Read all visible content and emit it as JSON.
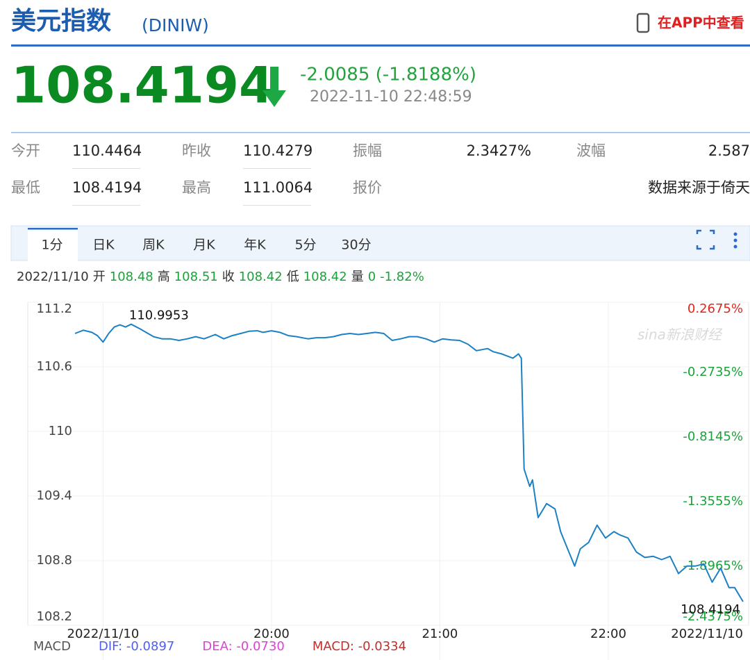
{
  "header": {
    "title": "美元指数",
    "code": "(DINIW)",
    "app_link": "在APP中查看"
  },
  "quote": {
    "price": "108.4194",
    "change": "-2.0085 (-1.8188%)",
    "time": "2022-11-10 22:48:59"
  },
  "stats": {
    "rows": [
      [
        [
          "今开",
          "110.4464"
        ],
        [
          "昨收",
          "110.4279"
        ],
        [
          "振幅",
          "2.3427%"
        ],
        [
          "波幅",
          "2.587"
        ]
      ],
      [
        [
          "最低",
          "108.4194"
        ],
        [
          "最高",
          "111.0064"
        ],
        [
          "报价",
          ""
        ]
      ]
    ],
    "source": "数据来源于倚天"
  },
  "tabs": {
    "items": [
      "1分",
      "日K",
      "周K",
      "月K",
      "年K",
      "5分",
      "30分"
    ],
    "active": "1分"
  },
  "ohlc_bar": {
    "date": "2022/11/10",
    "items": [
      [
        "开",
        "108.48"
      ],
      [
        "高",
        "108.51"
      ],
      [
        "收",
        "108.42"
      ],
      [
        "低",
        "108.42"
      ],
      [
        "量",
        "0"
      ]
    ],
    "change": "-1.82%"
  },
  "watermark": "sina新浪财经",
  "chart_data": {
    "type": "line",
    "x": [
      "18:50",
      "18:53",
      "18:56",
      "18:58",
      "19:00",
      "19:02",
      "19:04",
      "19:06",
      "19:08",
      "19:10",
      "19:13",
      "19:16",
      "19:18",
      "19:21",
      "19:24",
      "19:27",
      "19:30",
      "19:33",
      "19:36",
      "19:40",
      "19:43",
      "19:46",
      "19:49",
      "19:52",
      "19:55",
      "19:57",
      "20:00",
      "20:03",
      "20:06",
      "20:09",
      "20:13",
      "20:16",
      "20:19",
      "20:22",
      "20:25",
      "20:28",
      "20:31",
      "20:34",
      "20:37",
      "20:40",
      "20:43",
      "20:46",
      "20:49",
      "20:52",
      "20:55",
      "20:58",
      "21:01",
      "21:04",
      "21:07",
      "21:10",
      "21:13",
      "21:17",
      "21:19",
      "21:22",
      "21:26",
      "21:28",
      "21:29",
      "21:30",
      "21:32",
      "21:33",
      "21:35",
      "21:38",
      "21:41",
      "21:43",
      "21:45",
      "21:48",
      "21:50",
      "21:53",
      "21:56",
      "21:59",
      "22:02",
      "22:04",
      "22:07",
      "22:10",
      "22:13",
      "22:16",
      "22:19",
      "22:22",
      "22:25",
      "22:28",
      "22:31",
      "22:34",
      "22:37",
      "22:40",
      "22:43",
      "22:45",
      "22:48"
    ],
    "series": [
      {
        "name": "美元指数",
        "color": "#1b80c4",
        "values": [
          110.91,
          110.94,
          110.92,
          110.89,
          110.83,
          110.91,
          110.97,
          110.99,
          110.97,
          110.9953,
          110.955,
          110.91,
          110.88,
          110.86,
          110.86,
          110.845,
          110.86,
          110.88,
          110.86,
          110.9,
          110.86,
          110.89,
          110.91,
          110.93,
          110.935,
          110.92,
          110.935,
          110.92,
          110.89,
          110.88,
          110.86,
          110.87,
          110.87,
          110.88,
          110.9,
          110.91,
          110.9,
          110.91,
          110.92,
          110.91,
          110.845,
          110.86,
          110.88,
          110.88,
          110.86,
          110.83,
          110.86,
          110.85,
          110.845,
          110.81,
          110.75,
          110.77,
          110.74,
          110.72,
          110.68,
          110.72,
          110.68,
          109.65,
          109.49,
          109.55,
          109.2,
          109.33,
          109.28,
          109.07,
          108.94,
          108.75,
          108.91,
          108.97,
          109.13,
          109.01,
          109.07,
          109.04,
          109.01,
          108.88,
          108.83,
          108.84,
          108.81,
          108.84,
          108.68,
          108.75,
          108.75,
          108.77,
          108.6,
          108.73,
          108.55,
          108.55,
          108.4194
        ]
      }
    ],
    "xlim": [
      "18:50",
      "22:48"
    ],
    "xticks": [
      {
        "value": "19:00",
        "label": "2022/11/10"
      },
      "20:00",
      "21:00",
      "22:00",
      {
        "value": "22:48",
        "label": "2022/11/10"
      }
    ],
    "ylim": [
      108.2,
      111.2
    ],
    "yticks": [
      111.2,
      110.6,
      110,
      109.4,
      108.8,
      108.2
    ],
    "y2lim": [
      -2.4375,
      0.2675
    ],
    "y2ticks": [
      {
        "value": 0.2675,
        "label": "0.2675%"
      },
      {
        "value": -0.2735,
        "label": "-0.2735%"
      },
      {
        "value": -0.8145,
        "label": "-0.8145%"
      },
      {
        "value": -1.3555,
        "label": "-1.3555%"
      },
      {
        "value": -1.8965,
        "label": "-1.8965%"
      },
      {
        "value": -2.4375,
        "label": "-2.4375%"
      }
    ],
    "annotations": [
      {
        "x": "19:10",
        "value": 110.9953
      },
      {
        "x": "22:48",
        "value": 108.4194
      }
    ],
    "grid": true
  },
  "macd": {
    "name": "MACD",
    "dif": "DIF: -0.0897",
    "dea": "DEA: -0.0730",
    "macd": "MACD: -0.0334"
  }
}
